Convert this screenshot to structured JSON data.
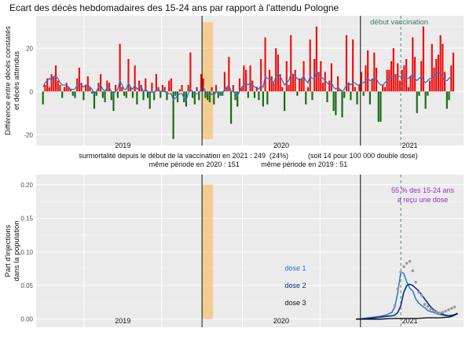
{
  "colors": {
    "panel_bg": "#ebebeb",
    "grid_major": "#ffffff",
    "bar_pos": "#ee1111",
    "bar_neg": "#1a6b12",
    "trend": "#3a70c8",
    "highlight": "#f5c06b",
    "vacc_line": "#4a8a7a",
    "vacc_label": "#3a7a6a",
    "dose1": "#1c6fd1",
    "dose2": "#0d2d8c",
    "dose3": "#111111",
    "dots": "#9a9a9a",
    "pct_label": "#9b2fc9"
  },
  "chart_data": [
    {
      "type": "bar",
      "title": "Ecart des décès hebdomadaires des 15-24 ans par rapport à l'attendu Pologne",
      "ylabel": [
        "Différence entre décès constatés",
        "et décès attendus"
      ],
      "ylim": [
        -25,
        35
      ],
      "yticks": [
        -20,
        0,
        20
      ],
      "x_unit": "weeks_since_2019w1",
      "xlim": [
        -3,
        140
      ],
      "year_separators": [
        52.5,
        105.5
      ],
      "highlight_band": [
        52.5,
        56.2
      ],
      "vaccination_week": 119,
      "vaccination_label": "début vaccination",
      "year_labels": [
        {
          "text": "2019",
          "week": 26
        },
        {
          "text": "2020",
          "week": 79
        },
        {
          "text": "2021",
          "week": 122
        }
      ],
      "values": [
        -6,
        3,
        6,
        2,
        8,
        7,
        12,
        5,
        3,
        -3,
        2,
        4,
        2,
        1,
        -2,
        -3,
        6,
        11,
        4,
        -4,
        3,
        7,
        2,
        -1,
        -8,
        -2,
        4,
        8,
        -3,
        -5,
        5,
        4,
        -4,
        -9,
        3,
        -3,
        22,
        2,
        -2,
        -3,
        15,
        2,
        -3,
        12,
        -6,
        5,
        3,
        -4,
        6,
        -3,
        -8,
        4,
        -4,
        8,
        2,
        -3,
        3,
        2,
        -4,
        5,
        6,
        -22,
        -2,
        -5,
        1,
        3,
        -5,
        -7,
        3,
        18,
        -3,
        -6,
        2,
        -4,
        8,
        6,
        -3,
        -4,
        -5,
        2,
        -6,
        3,
        -3,
        -2,
        -2,
        9,
        2,
        16,
        -15,
        3,
        -4,
        -7,
        6,
        2,
        12,
        10,
        -3,
        12,
        5,
        -3,
        2,
        -4,
        15,
        -7,
        25,
        -6,
        10,
        7,
        4,
        20,
        17,
        8,
        2,
        -9,
        14,
        3,
        26,
        8,
        10,
        -2,
        6,
        6,
        14,
        -6,
        2,
        24,
        -4,
        15,
        30,
        9,
        14,
        4,
        9,
        -5,
        5,
        13,
        -9,
        -11,
        7,
        1,
        -12,
        -3,
        26,
        4,
        -4,
        24,
        2,
        -6,
        3,
        9,
        -2,
        12,
        19,
        -6,
        6,
        18,
        11,
        -14,
        -14,
        3,
        2,
        10,
        10,
        14,
        20,
        8,
        13,
        5,
        10,
        12,
        15,
        2,
        7,
        25,
        16,
        -10,
        -2,
        14,
        30,
        -8,
        -2,
        5,
        22,
        11,
        15,
        17,
        26,
        22,
        9,
        -8,
        -4,
        12,
        18
      ],
      "trend": [
        2,
        4,
        5,
        6,
        5,
        7,
        7,
        6,
        4,
        3,
        3,
        3,
        2,
        1,
        1,
        1,
        3,
        4,
        3,
        2,
        3,
        3,
        2,
        1,
        -1,
        0,
        2,
        3,
        1,
        0,
        2,
        2,
        0,
        -1,
        0,
        1,
        5,
        3,
        1,
        1,
        4,
        2,
        1,
        3,
        1,
        2,
        2,
        0,
        1,
        0,
        -1,
        0,
        -1,
        1,
        1,
        0,
        0,
        0,
        -1,
        -1,
        -1,
        -4,
        -3,
        -2,
        -1,
        -1,
        -3,
        -4,
        -1,
        1,
        0,
        -1,
        -1,
        -1,
        1,
        2,
        0,
        -1,
        -2,
        -1,
        -2,
        0,
        -1,
        -1,
        -1,
        1,
        2,
        3,
        0,
        0,
        -1,
        -2,
        0,
        2,
        3,
        4,
        3,
        4,
        3,
        2,
        2,
        1,
        3,
        2,
        7,
        6,
        6,
        5,
        4,
        7,
        8,
        7,
        5,
        3,
        4,
        5,
        8,
        8,
        7,
        6,
        5,
        6,
        7,
        5,
        4,
        7,
        6,
        6,
        9,
        8,
        7,
        6,
        5,
        4,
        3,
        4,
        2,
        1,
        2,
        1,
        0,
        1,
        3,
        4,
        3,
        4,
        4,
        3,
        3,
        4,
        4,
        5,
        6,
        5,
        5,
        6,
        6,
        4,
        3,
        3,
        4,
        5,
        6,
        7,
        7,
        7,
        7,
        7,
        7,
        7,
        6,
        6,
        7,
        8,
        6,
        5,
        6,
        7,
        5,
        4,
        5,
        6,
        6,
        7,
        8,
        9,
        8,
        7,
        5,
        5,
        6,
        7
      ]
    },
    {
      "type": "line",
      "ylabel": [
        "Part d'injections",
        "dans la population"
      ],
      "ylim": [
        -0.012,
        0.215
      ],
      "yticks": [
        0.0,
        0.05,
        0.1,
        0.15,
        0.2
      ],
      "x_unit": "weeks_since_2019w1",
      "xlim": [
        -3,
        140
      ],
      "year_separators": [
        52.5,
        105.5
      ],
      "highlight_band": [
        52.5,
        56.2
      ],
      "vaccination_week": 119,
      "year_labels": [
        {
          "text": "2019",
          "week": 26
        },
        {
          "text": "2020",
          "week": 79
        },
        {
          "text": "2021",
          "week": 122
        }
      ],
      "annotation": [
        "55 % des 15-24 ans",
        "a reçu une dose"
      ],
      "series": [
        {
          "name": "dose 1",
          "x": [
            104,
            106,
            108,
            110,
            112,
            114,
            116,
            117,
            118,
            119,
            120,
            121,
            122,
            123,
            124,
            125,
            126,
            127,
            128,
            129,
            130,
            131,
            132,
            133,
            134,
            135,
            136,
            137,
            138
          ],
          "y": [
            0.0,
            0.001,
            0.002,
            0.003,
            0.004,
            0.006,
            0.01,
            0.018,
            0.04,
            0.07,
            0.068,
            0.055,
            0.046,
            0.042,
            0.03,
            0.024,
            0.02,
            0.017,
            0.013,
            0.011,
            0.01,
            0.008,
            0.007,
            0.006,
            0.005,
            0.005,
            0.006,
            0.007,
            0.008
          ]
        },
        {
          "name": "dose 2",
          "x": [
            104,
            106,
            108,
            110,
            112,
            114,
            116,
            117,
            118,
            119,
            120,
            121,
            122,
            123,
            124,
            125,
            126,
            127,
            128,
            129,
            130,
            131,
            132,
            133,
            134,
            135,
            136,
            137,
            138
          ],
          "y": [
            0.0,
            0.0,
            0.001,
            0.002,
            0.003,
            0.004,
            0.005,
            0.006,
            0.01,
            0.02,
            0.04,
            0.05,
            0.052,
            0.05,
            0.046,
            0.042,
            0.036,
            0.03,
            0.024,
            0.018,
            0.014,
            0.011,
            0.009,
            0.007,
            0.006,
            0.005,
            0.005,
            0.006,
            0.008
          ]
        },
        {
          "name": "dose 3",
          "x": [
            104,
            108,
            112,
            116,
            120,
            124,
            128,
            132,
            135,
            136,
            137,
            138
          ],
          "y": [
            0.0,
            0.0,
            0.0,
            0.001,
            0.001,
            0.001,
            0.002,
            0.002,
            0.003,
            0.004,
            0.006,
            0.009
          ]
        }
      ],
      "dots": {
        "x": [
          117,
          118,
          119,
          120,
          121,
          122,
          123,
          124,
          125,
          126,
          127,
          128,
          129,
          130,
          131,
          132,
          133,
          134,
          135,
          136,
          137
        ],
        "y": [
          0.02,
          0.045,
          0.07,
          0.078,
          0.083,
          0.086,
          0.072,
          0.055,
          0.04,
          0.035,
          0.022,
          0.019,
          0.015,
          0.012,
          0.01,
          0.009,
          0.01,
          0.012,
          0.014,
          0.016,
          0.018
        ]
      }
    }
  ],
  "stats": {
    "line1": "surmortalité depuis le début de la vaccination en 2021 : 249  (24%)          (soit 14 pour 100 000 double dose)",
    "line2": "même période en 2020 : 151           même période en 2019 : 51"
  }
}
